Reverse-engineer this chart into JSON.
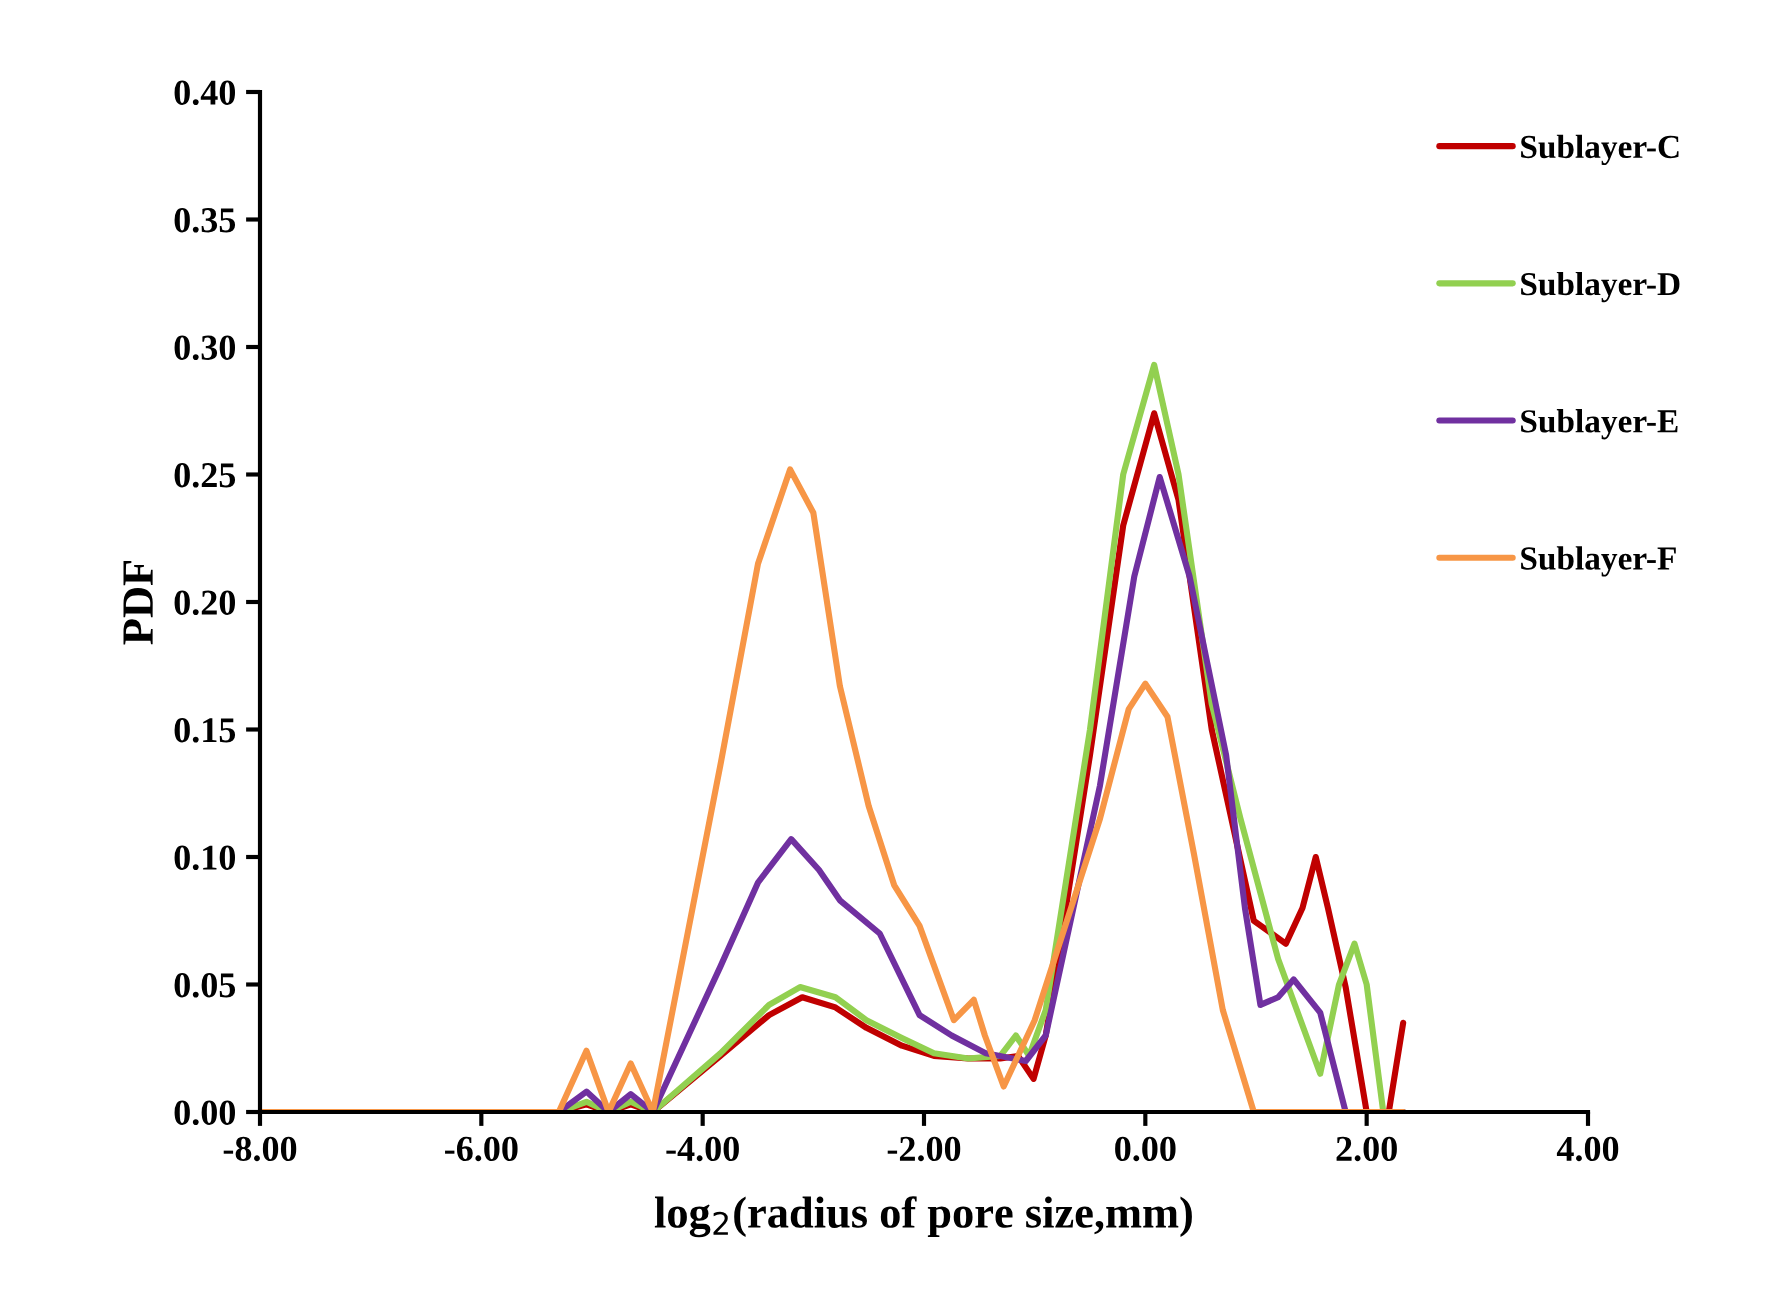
{
  "chart_data": {
    "type": "line",
    "xlabel": "log$_{2}$(radius of pore size,mm)",
    "ylabel": "PDF",
    "xlim": [
      -8,
      4
    ],
    "ylim": [
      0,
      0.4
    ],
    "xticks": [
      {
        "value": -8,
        "label": "-8.00"
      },
      {
        "value": -6,
        "label": "-6.00"
      },
      {
        "value": -4,
        "label": "-4.00"
      },
      {
        "value": -2,
        "label": "-2.00"
      },
      {
        "value": 0,
        "label": "0.00"
      },
      {
        "value": 2,
        "label": "2.00"
      },
      {
        "value": 4,
        "label": "4.00"
      }
    ],
    "yticks": [
      {
        "value": 0,
        "label": "0.00"
      },
      {
        "value": 0.05,
        "label": "0.05"
      },
      {
        "value": 0.1,
        "label": "0.10"
      },
      {
        "value": 0.15,
        "label": "0.15"
      },
      {
        "value": 0.2,
        "label": "0.20"
      },
      {
        "value": 0.25,
        "label": "0.25"
      },
      {
        "value": 0.3,
        "label": "0.30"
      },
      {
        "value": 0.35,
        "label": "0.35"
      },
      {
        "value": 0.4,
        "label": "0.40"
      }
    ],
    "grid": false,
    "legend": "right",
    "marker": "none",
    "line_style": "solid",
    "series": [
      {
        "name": "Sublayer-C",
        "color": "#c00000",
        "x": [
          -8,
          -5.3,
          -5.05,
          -4.85,
          -4.65,
          -4.45,
          -3.84,
          -3.4,
          -3.1,
          -2.8,
          -2.52,
          -2.2,
          -1.91,
          -1.6,
          -1.31,
          -1.15,
          -1.01,
          -0.9,
          -0.5,
          -0.2,
          0.08,
          0.3,
          0.6,
          0.98,
          1.27,
          1.42,
          1.54,
          1.65,
          1.81,
          2.0,
          2.2,
          2.33
        ],
        "values": [
          0,
          0,
          0.003,
          0,
          0.003,
          0,
          0.022,
          0.038,
          0.045,
          0.041,
          0.033,
          0.026,
          0.022,
          0.021,
          0.021,
          0.022,
          0.013,
          0.03,
          0.14,
          0.23,
          0.274,
          0.24,
          0.15,
          0.075,
          0.066,
          0.08,
          0.1,
          0.08,
          0.049,
          0,
          0,
          0.035
        ]
      },
      {
        "name": "Sublayer-D",
        "color": "#92d050",
        "x": [
          -8,
          -5.3,
          -5.05,
          -4.85,
          -4.65,
          -4.45,
          -3.84,
          -3.4,
          -3.12,
          -2.8,
          -2.52,
          -2.2,
          -1.91,
          -1.6,
          -1.31,
          -1.17,
          -1.05,
          -0.9,
          -0.5,
          -0.2,
          0.08,
          0.3,
          0.6,
          0.86,
          1.2,
          1.58,
          1.75,
          1.89,
          2.0,
          2.15,
          2.33
        ],
        "values": [
          0,
          0,
          0.004,
          0,
          0.004,
          0,
          0.023,
          0.042,
          0.049,
          0.045,
          0.036,
          0.029,
          0.023,
          0.021,
          0.022,
          0.03,
          0.022,
          0.04,
          0.15,
          0.25,
          0.293,
          0.25,
          0.16,
          0.115,
          0.06,
          0.015,
          0.05,
          0.066,
          0.05,
          0,
          0
        ]
      },
      {
        "name": "Sublayer-E",
        "color": "#7030a0",
        "x": [
          -8,
          -5.3,
          -5.05,
          -4.85,
          -4.65,
          -4.45,
          -3.84,
          -3.5,
          -3.2,
          -2.95,
          -2.76,
          -2.4,
          -2.04,
          -1.75,
          -1.44,
          -1.08,
          -0.9,
          -0.41,
          -0.1,
          0.13,
          0.4,
          0.73,
          0.9,
          1.04,
          1.2,
          1.34,
          1.58,
          1.81,
          2.33
        ],
        "values": [
          0,
          0,
          0.008,
          0,
          0.007,
          0,
          0.057,
          0.09,
          0.107,
          0.095,
          0.083,
          0.07,
          0.038,
          0.03,
          0.023,
          0.02,
          0.03,
          0.128,
          0.21,
          0.249,
          0.21,
          0.14,
          0.08,
          0.042,
          0.045,
          0.052,
          0.039,
          0,
          0
        ]
      },
      {
        "name": "Sublayer-F",
        "color": "#f79646",
        "x": [
          -8,
          -5.3,
          -5.05,
          -4.85,
          -4.65,
          -4.45,
          -3.84,
          -3.5,
          -3.21,
          -3.0,
          -2.76,
          -2.5,
          -2.27,
          -2.04,
          -1.73,
          -1.55,
          -1.45,
          -1.28,
          -1.0,
          -0.41,
          -0.15,
          0.0,
          0.2,
          0.44,
          0.7,
          0.98,
          2.33
        ],
        "values": [
          0,
          0,
          0.024,
          0,
          0.019,
          0,
          0.136,
          0.215,
          0.252,
          0.235,
          0.167,
          0.12,
          0.089,
          0.073,
          0.036,
          0.044,
          0.03,
          0.01,
          0.036,
          0.115,
          0.158,
          0.168,
          0.155,
          0.101,
          0.04,
          0,
          0
        ]
      }
    ]
  }
}
